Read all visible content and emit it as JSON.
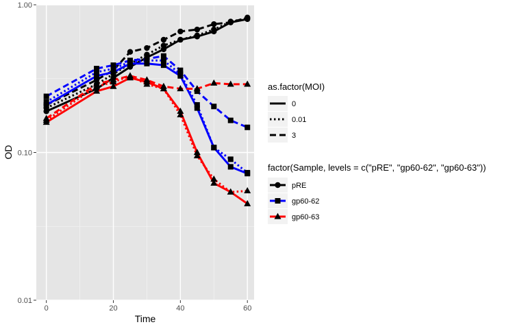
{
  "chart_data": {
    "type": "line",
    "title": "",
    "xlabel": "Time",
    "ylabel": "OD",
    "xlim": [
      -3,
      62
    ],
    "ylim": [
      0.01,
      1.0
    ],
    "y_scale": "log10",
    "x_ticks": [
      0,
      20,
      40,
      60
    ],
    "x_tick_labels": [
      "0",
      "20",
      "40",
      "60"
    ],
    "y_ticks": [
      0.01,
      0.1,
      1.0
    ],
    "y_tick_labels": [
      "0.01",
      "0.10",
      "1.00"
    ],
    "grid": true,
    "background": "#e5e5e5",
    "legends": [
      {
        "title": "as.factor(MOI)",
        "placement": "right",
        "entries": [
          {
            "label": "0",
            "dash": "solid"
          },
          {
            "label": "0.01",
            "dash": "dotted"
          },
          {
            "label": "3",
            "dash": "dashed"
          }
        ]
      },
      {
        "title": "factor(Sample, levels = c(\"pRE\", \"gp60-62\", \"gp60-63\"))",
        "placement": "right",
        "entries": [
          {
            "label": "pRE",
            "color": "#000000",
            "shape": "circle"
          },
          {
            "label": "gp60-62",
            "color": "#0000ff",
            "shape": "square"
          },
          {
            "label": "gp60-63",
            "color": "#ff0000",
            "shape": "triangle"
          }
        ]
      }
    ],
    "series": [
      {
        "sample": "pRE",
        "moi": "0",
        "color": "#000000",
        "shape": "circle",
        "dash": "solid",
        "x": [
          0,
          15,
          20,
          25,
          30,
          35,
          40,
          45,
          50,
          55,
          60
        ],
        "y": [
          0.19,
          0.27,
          0.32,
          0.38,
          0.44,
          0.5,
          0.58,
          0.61,
          0.66,
          0.76,
          0.8
        ]
      },
      {
        "sample": "pRE",
        "moi": "0.01",
        "color": "#000000",
        "shape": "circle",
        "dash": "dotted",
        "x": [
          0,
          15,
          20,
          25,
          30,
          35,
          40,
          45,
          50,
          55,
          60
        ],
        "y": [
          0.2,
          0.29,
          0.34,
          0.4,
          0.46,
          0.53,
          0.58,
          0.62,
          0.68,
          0.77,
          0.81
        ]
      },
      {
        "sample": "pRE",
        "moi": "3",
        "color": "#000000",
        "shape": "circle",
        "dash": "dashed",
        "x": [
          0,
          15,
          20,
          25,
          30,
          35,
          40,
          45,
          50,
          55,
          60
        ],
        "y": [
          0.21,
          0.31,
          0.36,
          0.48,
          0.51,
          0.58,
          0.66,
          0.68,
          0.74,
          0.76,
          0.82
        ]
      },
      {
        "sample": "gp60-62",
        "moi": "0",
        "color": "#0000ff",
        "shape": "square",
        "dash": "solid",
        "x": [
          0,
          15,
          20,
          25,
          30,
          35,
          40,
          45,
          50,
          55,
          60
        ],
        "y": [
          0.21,
          0.33,
          0.35,
          0.4,
          0.4,
          0.39,
          0.33,
          0.2,
          0.108,
          0.08,
          0.072
        ]
      },
      {
        "sample": "gp60-62",
        "moi": "0.01",
        "color": "#0000ff",
        "shape": "square",
        "dash": "dotted",
        "x": [
          0,
          15,
          20,
          25,
          30,
          35,
          40,
          45,
          50,
          55,
          60
        ],
        "y": [
          0.22,
          0.35,
          0.37,
          0.41,
          0.42,
          0.42,
          0.34,
          0.21,
          0.108,
          0.09,
          0.073
        ]
      },
      {
        "sample": "gp60-62",
        "moi": "3",
        "color": "#0000ff",
        "shape": "square",
        "dash": "dashed",
        "x": [
          0,
          15,
          20,
          25,
          30,
          35,
          40,
          45,
          50,
          55,
          60
        ],
        "y": [
          0.24,
          0.37,
          0.39,
          0.42,
          0.43,
          0.45,
          0.36,
          0.26,
          0.205,
          0.165,
          0.148
        ]
      },
      {
        "sample": "gp60-63",
        "moi": "0",
        "color": "#ff0000",
        "shape": "triangle",
        "dash": "solid",
        "x": [
          0,
          15,
          20,
          25,
          30,
          35,
          40,
          45,
          50,
          55,
          60
        ],
        "y": [
          0.16,
          0.26,
          0.28,
          0.32,
          0.3,
          0.27,
          0.19,
          0.1,
          0.062,
          0.054,
          0.045
        ]
      },
      {
        "sample": "gp60-63",
        "moi": "0.01",
        "color": "#ff0000",
        "shape": "triangle",
        "dash": "dotted",
        "x": [
          0,
          15,
          20,
          25,
          30,
          35,
          40,
          45,
          50,
          55,
          60
        ],
        "y": [
          0.165,
          0.28,
          0.3,
          0.33,
          0.29,
          0.27,
          0.18,
          0.095,
          0.066,
          0.054,
          0.055
        ]
      },
      {
        "sample": "gp60-63",
        "moi": "3",
        "color": "#ff0000",
        "shape": "triangle",
        "dash": "dashed",
        "x": [
          0,
          15,
          20,
          25,
          30,
          35,
          40,
          45,
          50,
          55,
          60
        ],
        "y": [
          0.17,
          0.29,
          0.31,
          0.33,
          0.31,
          0.28,
          0.27,
          0.27,
          0.295,
          0.29,
          0.29
        ]
      }
    ]
  }
}
